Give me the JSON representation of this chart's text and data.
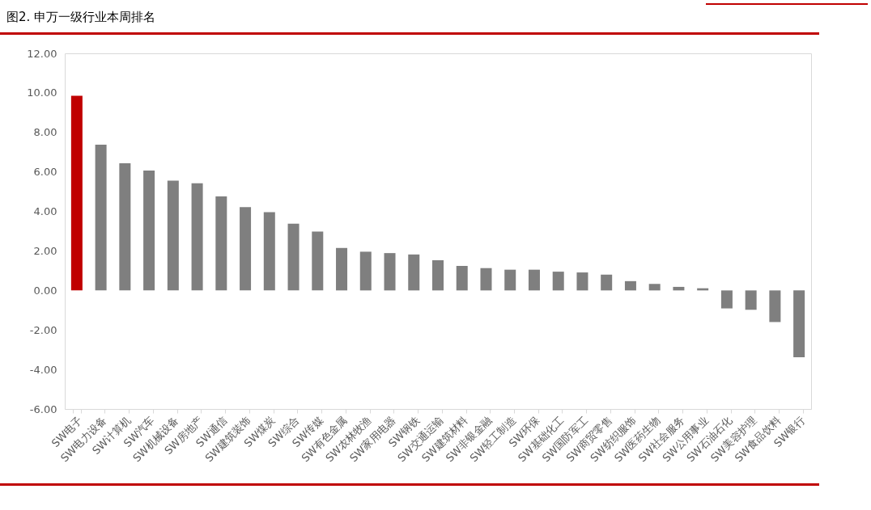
{
  "chart_data": {
    "type": "bar",
    "title": "图2. 申万一级行业本周排名",
    "categories": [
      "SW电子",
      "SW电力设备",
      "SW计算机",
      "SW汽车",
      "SW机械设备",
      "SW房地产",
      "SW通信",
      "SW建筑装饰",
      "SW煤炭",
      "SW综合",
      "SW传媒",
      "SW有色金属",
      "SW农林牧渔",
      "SW家用电器",
      "SW钢铁",
      "SW交通运输",
      "SW建筑材料",
      "SW非银金融",
      "SW轻工制造",
      "SW环保",
      "SW基础化工",
      "SW国防军工",
      "SW商贸零售",
      "SW纺织服饰",
      "SW医药生物",
      "SW社会服务",
      "SW公用事业",
      "SW石油石化",
      "SW美容护理",
      "SW食品饮料",
      "SW银行"
    ],
    "values": [
      9.85,
      7.38,
      6.44,
      6.07,
      5.56,
      5.42,
      4.76,
      4.22,
      3.96,
      3.38,
      2.98,
      2.15,
      1.96,
      1.89,
      1.82,
      1.53,
      1.24,
      1.13,
      1.05,
      1.05,
      0.95,
      0.91,
      0.8,
      0.47,
      0.33,
      0.18,
      0.11,
      -0.91,
      -0.98,
      -1.6,
      -3.38
    ],
    "colors": [
      "#c00000",
      "#7f7f7f",
      "#7f7f7f",
      "#7f7f7f",
      "#7f7f7f",
      "#7f7f7f",
      "#7f7f7f",
      "#7f7f7f",
      "#7f7f7f",
      "#7f7f7f",
      "#7f7f7f",
      "#7f7f7f",
      "#7f7f7f",
      "#7f7f7f",
      "#7f7f7f",
      "#7f7f7f",
      "#7f7f7f",
      "#7f7f7f",
      "#7f7f7f",
      "#7f7f7f",
      "#7f7f7f",
      "#7f7f7f",
      "#7f7f7f",
      "#7f7f7f",
      "#7f7f7f",
      "#7f7f7f",
      "#7f7f7f",
      "#7f7f7f",
      "#7f7f7f",
      "#7f7f7f",
      "#7f7f7f"
    ],
    "ylim": [
      -6,
      12
    ],
    "yticks": [
      {
        "value": -6,
        "label": "-6.00"
      },
      {
        "value": -4,
        "label": "-4.00"
      },
      {
        "value": -2,
        "label": "-2.00"
      },
      {
        "value": 0,
        "label": "0.00"
      },
      {
        "value": 2,
        "label": "2.00"
      },
      {
        "value": 4,
        "label": "4.00"
      },
      {
        "value": 6,
        "label": "6.00"
      },
      {
        "value": 8,
        "label": "8.00"
      },
      {
        "value": 10,
        "label": "10.00"
      },
      {
        "value": 12,
        "label": "12.00"
      }
    ],
    "grid": false
  }
}
